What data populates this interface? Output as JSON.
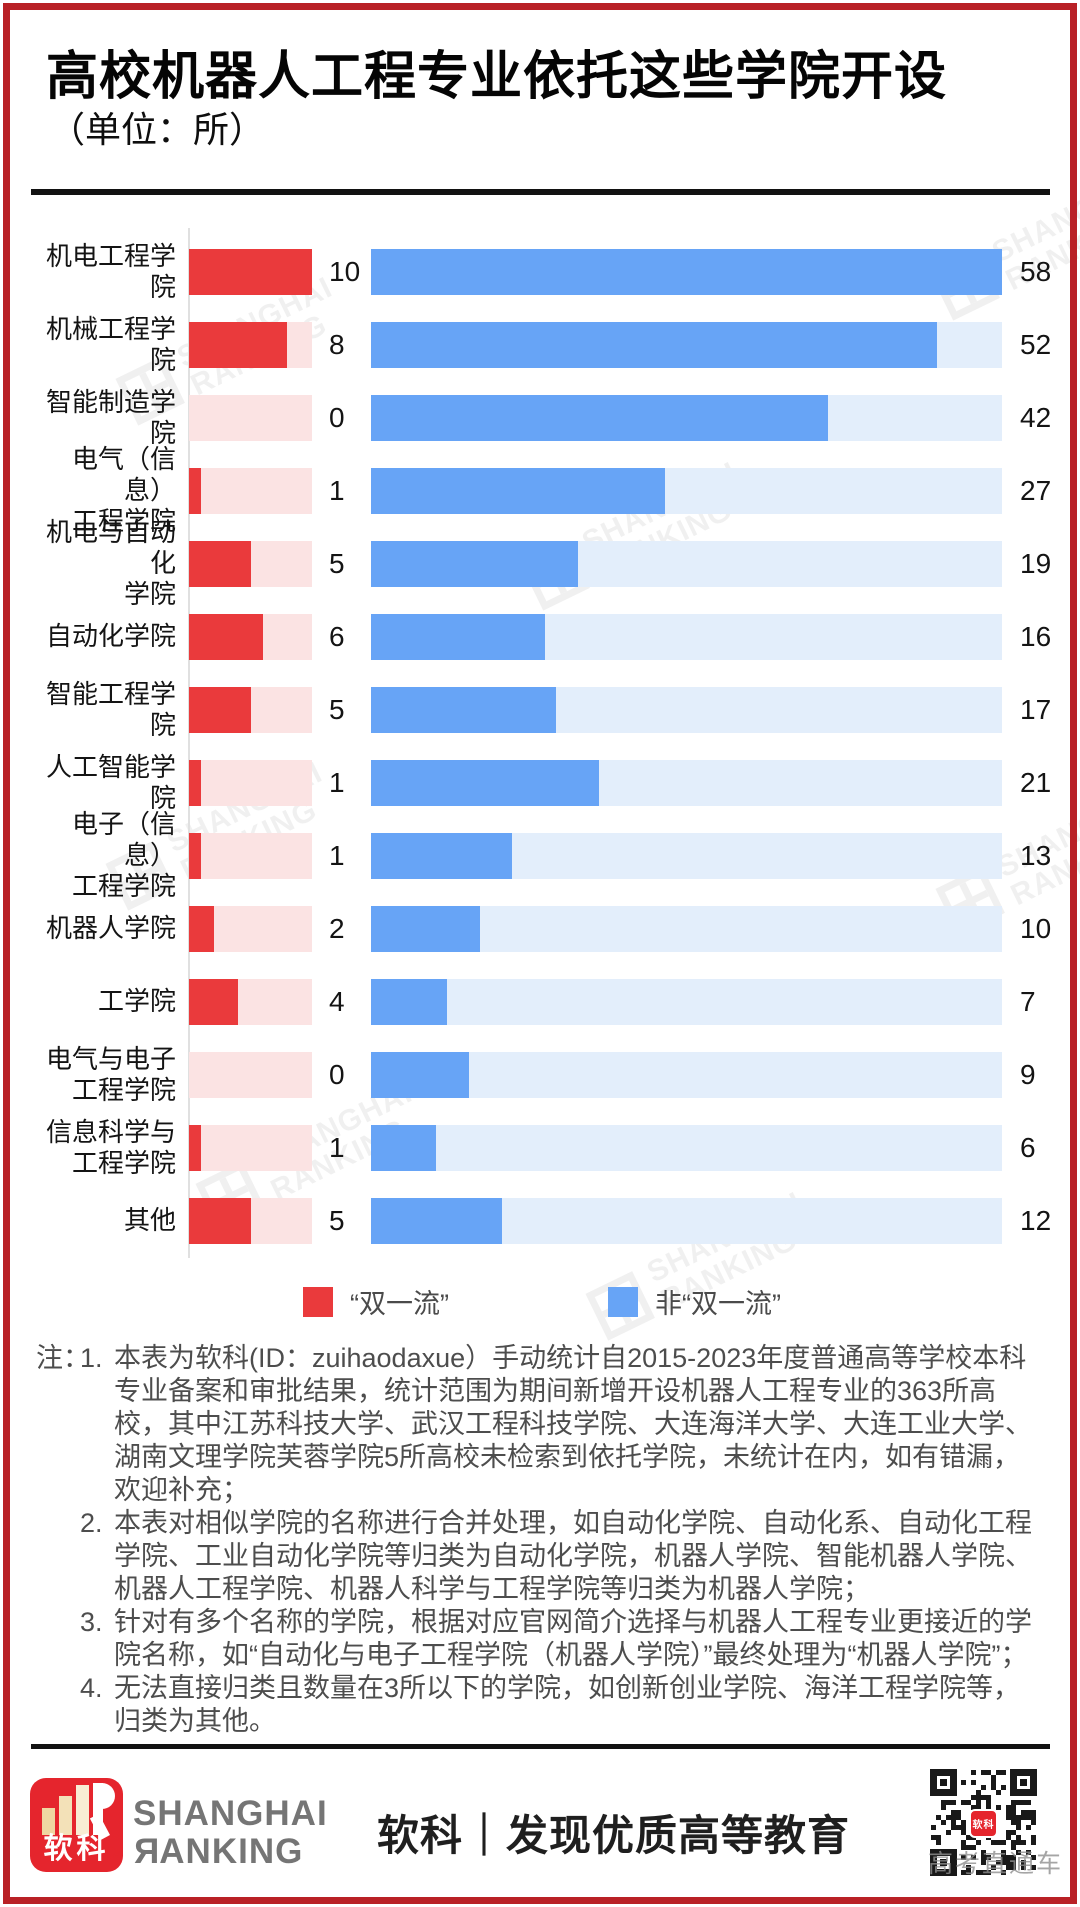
{
  "page": {
    "title": "高校机器人工程专业依托这些学院开设",
    "subtitle": "（单位：所）"
  },
  "chart_data": {
    "type": "bar",
    "orientation": "horizontal",
    "title": "高校机器人工程专业依托这些学院开设",
    "unit": "所",
    "grid": false,
    "legend_position": "bottom",
    "categories": [
      "机电工程学院",
      "机械工程学院",
      "智能制造学院",
      "电气（信息）\n工程学院",
      "机电与自动化\n学院",
      "自动化学院",
      "智能工程学院",
      "人工智能学院",
      "电子（信息）\n工程学院",
      "机器人学院",
      "工学院",
      "电气与电子\n工程学院",
      "信息科学与\n工程学院",
      "其他"
    ],
    "series": [
      {
        "name": "“双一流”",
        "color": "#ea3a3c",
        "track_color": "#fbe3e3",
        "axis_max": 10,
        "values": [
          10,
          8,
          0,
          1,
          5,
          6,
          5,
          1,
          1,
          2,
          4,
          0,
          1,
          5
        ]
      },
      {
        "name": "非“双一流”",
        "color": "#67a4f6",
        "track_color": "#e3eefb",
        "axis_max": 58,
        "values": [
          58,
          52,
          42,
          27,
          19,
          16,
          17,
          21,
          13,
          10,
          7,
          9,
          6,
          12
        ]
      }
    ]
  },
  "notes": {
    "prefix": "注：",
    "items": [
      "本表为软科(ID：zuihaodaxue）手动统计自2015-2023年度普通高等学校本科专业备案和审批结果，统计范围为期间新增开设机器人工程专业的363所高校，其中江苏科技大学、武汉工程科技学院、大连海洋大学、大连工业大学、湖南文理学院芙蓉学院5所高校未检索到依托学院，未统计在内，如有错漏，欢迎补充；",
      "本表对相似学院的名称进行合并处理，如自动化学院、自动化系、自动化工程学院、工业自动化学院等归类为自动化学院，机器人学院、智能机器人学院、机器人工程学院、机器人科学与工程学院等归类为机器人学院；",
      "针对有多个名称的学院，根据对应官网简介选择与机器人工程专业更接近的学院名称，如“自动化与电子工程学院（机器人学院）”最终处理为“机器人学院”；",
      "无法直接归类且数量在3所以下的学院，如创新创业学院、海洋工程学院等，归类为其他。"
    ]
  },
  "watermark": {
    "line1": "SHANGHAI",
    "line2": "RANKING"
  },
  "footer": {
    "logo_text": "软科",
    "brand_line1": "SHANGHAI",
    "brand_line2_initial": "R",
    "brand_line2_rest": "ANKING",
    "tagline": "软科｜发现优质高等教育",
    "qr_caption": "高考直通车"
  }
}
